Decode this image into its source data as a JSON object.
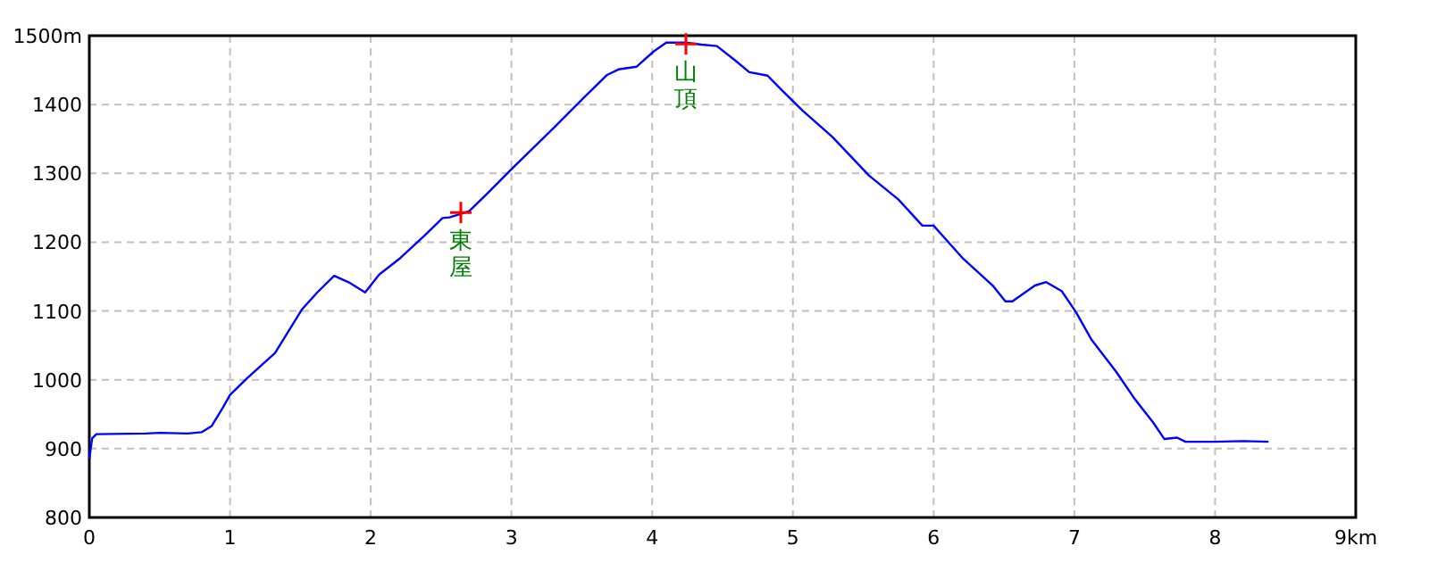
{
  "chart_data": {
    "type": "line",
    "x": [
      0,
      0.02,
      0.05,
      0.4,
      0.5,
      0.7,
      0.8,
      0.87,
      0.95,
      1.0,
      1.12,
      1.32,
      1.51,
      1.62,
      1.74,
      1.85,
      1.96,
      2.06,
      2.21,
      2.38,
      2.51,
      2.56,
      2.7,
      2.83,
      3.0,
      3.3,
      3.51,
      3.68,
      3.76,
      3.89,
      4.01,
      4.1,
      4.24,
      4.35,
      4.46,
      4.59,
      4.69,
      4.82,
      4.92,
      5.07,
      5.28,
      5.54,
      5.75,
      5.92,
      6.0,
      6.21,
      6.42,
      6.51,
      6.56,
      6.72,
      6.8,
      6.91,
      7.01,
      7.12,
      7.3,
      7.43,
      7.56,
      7.64,
      7.73,
      7.79,
      8.0,
      8.2,
      8.38
    ],
    "series": [
      {
        "color": "#0000ff",
        "values": [
          885,
          915,
          921,
          922,
          923,
          922,
          924,
          933,
          960,
          978,
          1002,
          1039,
          1102,
          1127,
          1151,
          1141,
          1127,
          1153,
          1177,
          1209,
          1235,
          1236,
          1245,
          1271,
          1306,
          1366,
          1409,
          1443,
          1451,
          1455,
          1477,
          1490,
          1490,
          1487,
          1485,
          1464,
          1447,
          1442,
          1421,
          1391,
          1353,
          1297,
          1262,
          1224,
          1224,
          1176,
          1137,
          1114,
          1114,
          1137,
          1142,
          1129,
          1099,
          1059,
          1011,
          972,
          938,
          914,
          916,
          910,
          910,
          911,
          910
        ]
      },
      {
        "type": "scatter",
        "marker": "cross",
        "color": "#ff0000",
        "x": [
          2.64,
          4.24
        ],
        "values": [
          1243,
          1488
        ]
      }
    ],
    "xlim": [
      0,
      9
    ],
    "ylim": [
      800,
      1500
    ],
    "xticks": [
      0,
      1,
      2,
      3,
      4,
      5,
      6,
      7,
      8,
      {
        "value": 9,
        "label": "9km"
      }
    ],
    "yticks": [
      800,
      900,
      1000,
      1100,
      1200,
      1300,
      1400,
      {
        "value": 1500,
        "label": "1500m"
      }
    ],
    "grid": true,
    "annotations": [
      {
        "text": "東屋",
        "x": 2.64,
        "y": 1243
      },
      {
        "text": "山頂",
        "x": 4.24,
        "y": 1488
      }
    ]
  }
}
